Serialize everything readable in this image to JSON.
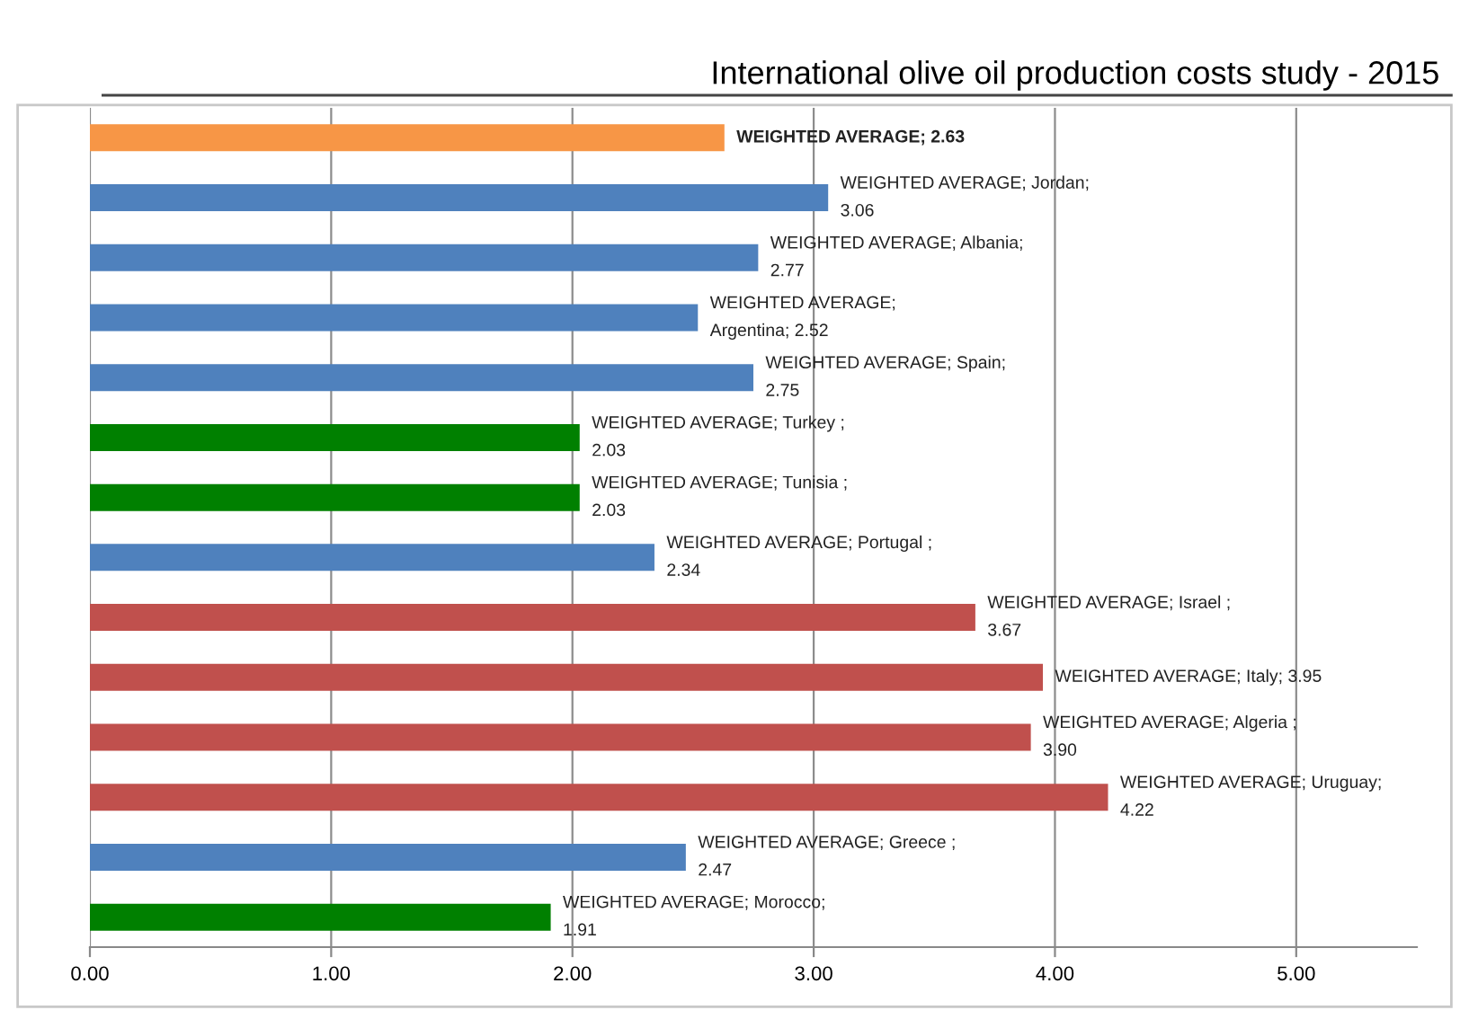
{
  "chart_data": {
    "type": "bar",
    "orientation": "horizontal",
    "title": "International olive oil production costs study - 2015",
    "categories": [
      null,
      null,
      null,
      null,
      null,
      null,
      null,
      null,
      null,
      null,
      null,
      null,
      null,
      null
    ],
    "values": [
      2.63,
      3.06,
      2.77,
      2.52,
      2.75,
      2.03,
      2.03,
      2.34,
      3.67,
      3.95,
      3.9,
      4.22,
      2.47,
      1.91
    ],
    "colors": [
      "#f79646",
      "#4f81bd",
      "#4f81bd",
      "#4f81bd",
      "#4f81bd",
      "#008000",
      "#008000",
      "#4f81bd",
      "#c0504d",
      "#c0504d",
      "#c0504d",
      "#c0504d",
      "#4f81bd",
      "#008000"
    ],
    "value_labels": [
      "WEIGHTED AVERAGE; 2.63",
      "WEIGHTED AVERAGE; Jordan;\n3.06",
      "WEIGHTED AVERAGE; Albania;\n2.77",
      "WEIGHTED AVERAGE;\nArgentina; 2.52",
      "WEIGHTED AVERAGE; Spain;\n2.75",
      "WEIGHTED AVERAGE; Turkey ;\n2.03",
      "WEIGHTED AVERAGE; Tunisia ;\n2.03",
      "WEIGHTED AVERAGE; Portugal ;\n2.34",
      "WEIGHTED AVERAGE; Israel ;\n3.67",
      "WEIGHTED AVERAGE; Italy; 3.95",
      "WEIGHTED AVERAGE; Algeria ;\n3.90",
      "WEIGHTED AVERAGE; Uruguay;\n4.22",
      "WEIGHTED AVERAGE; Greece ;\n2.47",
      "WEIGHTED AVERAGE; Morocco;\n1.91"
    ],
    "xlim": [
      0,
      5.5
    ],
    "xticks": [
      {
        "value": 0,
        "label": "0.00"
      },
      {
        "value": 1,
        "label": "1.00"
      },
      {
        "value": 2,
        "label": "2.00"
      },
      {
        "value": 3,
        "label": "3.00"
      },
      {
        "value": 4,
        "label": "4.00"
      },
      {
        "value": 5,
        "label": "5.00"
      }
    ],
    "grid": "x",
    "legend": false
  }
}
